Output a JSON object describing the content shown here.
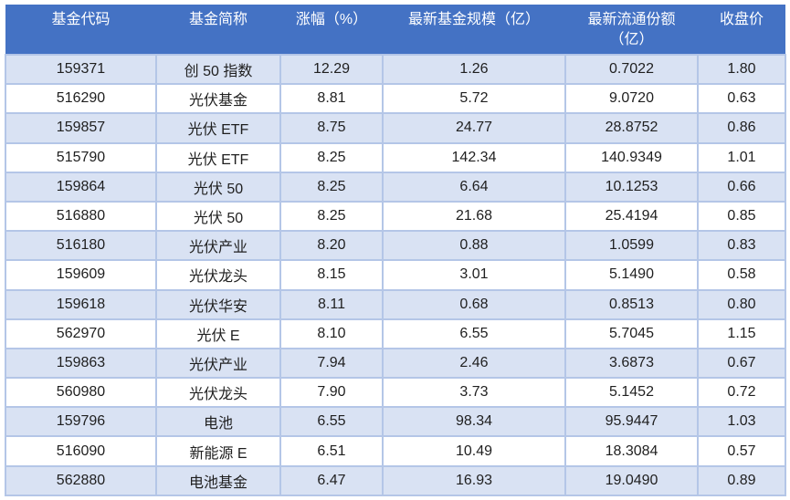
{
  "header": {
    "labels": [
      "基金代码",
      "基金简称",
      "涨幅（%）",
      "最新基金规模（亿）",
      "最新流通份额\n（亿）",
      "收盘价"
    ]
  },
  "chart_data": {
    "type": "table",
    "columns": [
      "基金代码",
      "基金简称",
      "涨幅（%）",
      "最新基金规模（亿）",
      "最新流通份额（亿）",
      "收盘价"
    ],
    "rows": [
      [
        "159371",
        "创 50 指数",
        "12.29",
        "1.26",
        "0.7022",
        "1.80"
      ],
      [
        "516290",
        "光伏基金",
        "8.81",
        "5.72",
        "9.0720",
        "0.63"
      ],
      [
        "159857",
        "光伏 ETF",
        "8.75",
        "24.77",
        "28.8752",
        "0.86"
      ],
      [
        "515790",
        "光伏 ETF",
        "8.25",
        "142.34",
        "140.9349",
        "1.01"
      ],
      [
        "159864",
        "光伏 50",
        "8.25",
        "6.64",
        "10.1253",
        "0.66"
      ],
      [
        "516880",
        "光伏 50",
        "8.25",
        "21.68",
        "25.4194",
        "0.85"
      ],
      [
        "516180",
        "光伏产业",
        "8.20",
        "0.88",
        "1.0599",
        "0.83"
      ],
      [
        "159609",
        "光伏龙头",
        "8.15",
        "3.01",
        "5.1490",
        "0.58"
      ],
      [
        "159618",
        "光伏华安",
        "8.11",
        "0.68",
        "0.8513",
        "0.80"
      ],
      [
        "562970",
        "光伏 E",
        "8.10",
        "6.55",
        "5.7045",
        "1.15"
      ],
      [
        "159863",
        "光伏产业",
        "7.94",
        "2.46",
        "3.6873",
        "0.67"
      ],
      [
        "560980",
        "光伏龙头",
        "7.90",
        "3.73",
        "5.1452",
        "0.72"
      ],
      [
        "159796",
        "电池",
        "6.55",
        "98.34",
        "95.9447",
        "1.03"
      ],
      [
        "516090",
        "新能源 E",
        "6.51",
        "10.49",
        "18.3084",
        "0.57"
      ],
      [
        "562880",
        "电池基金",
        "6.47",
        "16.93",
        "19.0490",
        "0.89"
      ]
    ],
    "layout": {
      "banded_rows": "odd",
      "header_position": "top",
      "text_align": "center"
    }
  },
  "colors": {
    "header_bg": "#4472C4",
    "header_text": "#FFFFFF",
    "row_band_bg": "#D9E2F3",
    "row_bg": "#FFFFFF",
    "border": "#B4C6E7",
    "text": "#1F1F1F"
  }
}
